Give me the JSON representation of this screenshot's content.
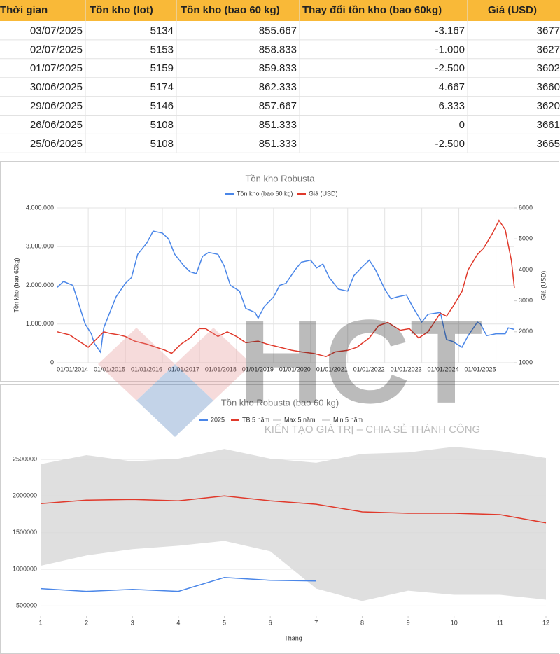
{
  "table": {
    "header": [
      "Thời gian",
      "Tồn kho (lot)",
      "Tồn kho (bao 60 kg)",
      "Thay đổi tồn kho (bao 60kg)",
      "Giá (USD)"
    ],
    "rows": [
      [
        "03/07/2025",
        "5134",
        "855.667",
        "-3.167",
        "3677"
      ],
      [
        "02/07/2025",
        "5153",
        "858.833",
        "-1.000",
        "3627"
      ],
      [
        "01/07/2025",
        "5159",
        "859.833",
        "-2.500",
        "3602"
      ],
      [
        "30/06/2025",
        "5174",
        "862.333",
        "4.667",
        "3660"
      ],
      [
        "29/06/2025",
        "5146",
        "857.667",
        "6.333",
        "3620"
      ],
      [
        "26/06/2025",
        "5108",
        "851.333",
        "0",
        "3661"
      ],
      [
        "25/06/2025",
        "5108",
        "851.333",
        "-2.500",
        "3665"
      ]
    ]
  },
  "watermark": {
    "logo": "HCT",
    "tagline": "KIẾN TẠO GIÁ TRỊ – CHIA SẺ THÀNH CÔNG"
  },
  "chart_data": [
    {
      "type": "line",
      "title": "Tồn kho Robusta",
      "ylabel": "Tồn kho (bao 60kg)",
      "y2label": "Giá (USD)",
      "grid": true,
      "xlim": [
        "01/03/2013",
        "01/07/2025"
      ],
      "xticks": [
        "01/01/2014",
        "01/01/2015",
        "01/01/2016",
        "01/01/2017",
        "01/01/2018",
        "01/01/2019",
        "01/01/2020",
        "01/01/2021",
        "01/01/2022",
        "01/01/2023",
        "01/01/2024",
        "01/01/2025"
      ],
      "ylim": [
        0,
        4000000
      ],
      "yticks": [
        0,
        {
          "value": 1000000,
          "label": "1.000.000"
        },
        {
          "value": 2000000,
          "label": "2.000.000"
        },
        {
          "value": 3000000,
          "label": "3.000.000"
        },
        {
          "value": 4000000,
          "label": "4.000.000"
        }
      ],
      "y2lim": [
        1000,
        6000
      ],
      "y2ticks": [
        1000,
        2000,
        3000,
        4000,
        5000,
        6000
      ],
      "series": [
        {
          "name": "Tồn kho (bao 60 kg)",
          "color": "#4a86e8",
          "x": [
            "01/03/2013",
            "01/05/2013",
            "01/08/2013",
            "01/10/2013",
            "01/12/2013",
            "01/02/2014",
            "01/03/2014",
            "01/05/2014",
            "01/06/2014",
            "01/08/2014",
            "01/10/2014",
            "01/01/2015",
            "01/03/2015",
            "01/05/2015",
            "01/08/2015",
            "01/10/2015",
            "01/01/2016",
            "01/03/2016",
            "01/05/2016",
            "01/08/2016",
            "01/10/2016",
            "01/12/2016",
            "01/02/2017",
            "01/04/2017",
            "01/07/2017",
            "01/09/2017",
            "01/11/2017",
            "01/02/2018",
            "01/04/2018",
            "01/07/2018",
            "01/08/2018",
            "01/10/2018",
            "01/01/2019",
            "01/03/2019",
            "01/05/2019",
            "01/08/2019",
            "01/10/2019",
            "01/01/2020",
            "01/03/2020",
            "01/05/2020",
            "01/07/2020",
            "01/10/2020",
            "01/01/2021",
            "01/03/2021",
            "01/06/2021",
            "01/08/2021",
            "01/10/2021",
            "01/01/2022",
            "01/03/2022",
            "01/05/2022",
            "01/08/2022",
            "01/10/2022",
            "01/01/2023",
            "01/03/2023",
            "01/07/2023",
            "01/09/2023",
            "01/11/2023",
            "01/02/2024",
            "01/04/2024",
            "01/07/2024",
            "01/08/2024",
            "01/10/2024",
            "01/01/2025",
            "01/04/2025",
            "01/05/2025",
            "01/07/2025"
          ],
          "values": [
            1950000,
            2100000,
            2000000,
            1500000,
            1000000,
            750000,
            500000,
            270000,
            900000,
            1300000,
            1700000,
            2050000,
            2200000,
            2800000,
            3100000,
            3400000,
            3350000,
            3200000,
            2800000,
            2500000,
            2350000,
            2300000,
            2750000,
            2850000,
            2800000,
            2500000,
            2000000,
            1850000,
            1400000,
            1300000,
            1150000,
            1450000,
            1700000,
            2000000,
            2050000,
            2400000,
            2600000,
            2650000,
            2450000,
            2550000,
            2200000,
            1900000,
            1850000,
            2250000,
            2500000,
            2650000,
            2400000,
            1900000,
            1650000,
            1700000,
            1750000,
            1450000,
            1050000,
            1250000,
            1300000,
            600000,
            550000,
            400000,
            700000,
            1050000,
            1000000,
            700000,
            750000,
            750000,
            900000,
            860000
          ]
        },
        {
          "name": "Giá (USD)",
          "color": "#e0392b",
          "axis": "y2",
          "x": [
            "01/03/2013",
            "01/07/2013",
            "01/10/2013",
            "01/01/2014",
            "01/03/2014",
            "01/06/2014",
            "01/08/2014",
            "01/11/2014",
            "01/01/2015",
            "01/04/2015",
            "01/08/2015",
            "01/11/2015",
            "01/02/2016",
            "01/04/2016",
            "01/07/2016",
            "01/10/2016",
            "01/01/2017",
            "01/03/2017",
            "01/07/2017",
            "01/10/2017",
            "01/01/2018",
            "01/04/2018",
            "01/08/2018",
            "01/11/2018",
            "01/03/2019",
            "01/07/2019",
            "01/10/2019",
            "01/02/2020",
            "01/06/2020",
            "01/09/2020",
            "01/01/2021",
            "01/04/2021",
            "01/08/2021",
            "01/11/2021",
            "01/02/2022",
            "01/06/2022",
            "01/09/2022",
            "01/12/2022",
            "01/03/2023",
            "01/07/2023",
            "01/09/2023",
            "01/11/2023",
            "01/02/2024",
            "01/04/2024",
            "01/07/2024",
            "01/09/2024",
            "01/12/2024",
            "01/02/2025",
            "01/04/2025",
            "01/06/2025",
            "01/07/2025"
          ],
          "values": [
            2000,
            1900,
            1700,
            1500,
            1700,
            2000,
            1950,
            1900,
            1850,
            1700,
            1600,
            1500,
            1400,
            1300,
            1600,
            1800,
            2100,
            2100,
            1850,
            2000,
            1850,
            1650,
            1700,
            1600,
            1500,
            1400,
            1350,
            1300,
            1200,
            1350,
            1400,
            1500,
            1800,
            2200,
            2300,
            2050,
            2100,
            1800,
            2000,
            2600,
            2500,
            2800,
            3300,
            4000,
            4500,
            4700,
            5200,
            5600,
            5300,
            4300,
            3400
          ]
        }
      ]
    },
    {
      "type": "line",
      "title": "Tồn kho Robusta (bao 60 kg)",
      "xlabel": "Tháng",
      "grid": true,
      "x": [
        1,
        2,
        3,
        4,
        5,
        6,
        7,
        8,
        9,
        10,
        11,
        12
      ],
      "xlim": [
        1,
        12
      ],
      "xticks": [
        1,
        2,
        3,
        4,
        5,
        6,
        7,
        8,
        9,
        10,
        11,
        12
      ],
      "ylim": [
        360000,
        2700000
      ],
      "yticks": [
        500000,
        1000000,
        1500000,
        2000000,
        2500000
      ],
      "series": [
        {
          "name": "2025",
          "color": "#4a86e8",
          "values": [
            736000,
            698000,
            726000,
            698000,
            887000,
            849000,
            840000,
            null,
            null,
            null,
            null,
            null
          ]
        },
        {
          "name": "TB 5 năm",
          "color": "#e0392b",
          "values": [
            1896000,
            1943000,
            1953000,
            1934000,
            2000000,
            1934000,
            1887000,
            1783000,
            1764000,
            1764000,
            1745000,
            1632000
          ]
        },
        {
          "name": "Max 5 năm",
          "color": "#d9d9d9",
          "values": [
            2434000,
            2557000,
            2472000,
            2509000,
            2642000,
            2509000,
            2453000,
            2575000,
            2594000,
            2670000,
            2613000,
            2519000
          ]
        },
        {
          "name": "Min 5 năm",
          "color": "#d9d9d9",
          "values": [
            1047000,
            1189000,
            1274000,
            1321000,
            1387000,
            1245000,
            736000,
            566000,
            708000,
            651000,
            651000,
            585000
          ]
        }
      ]
    }
  ]
}
